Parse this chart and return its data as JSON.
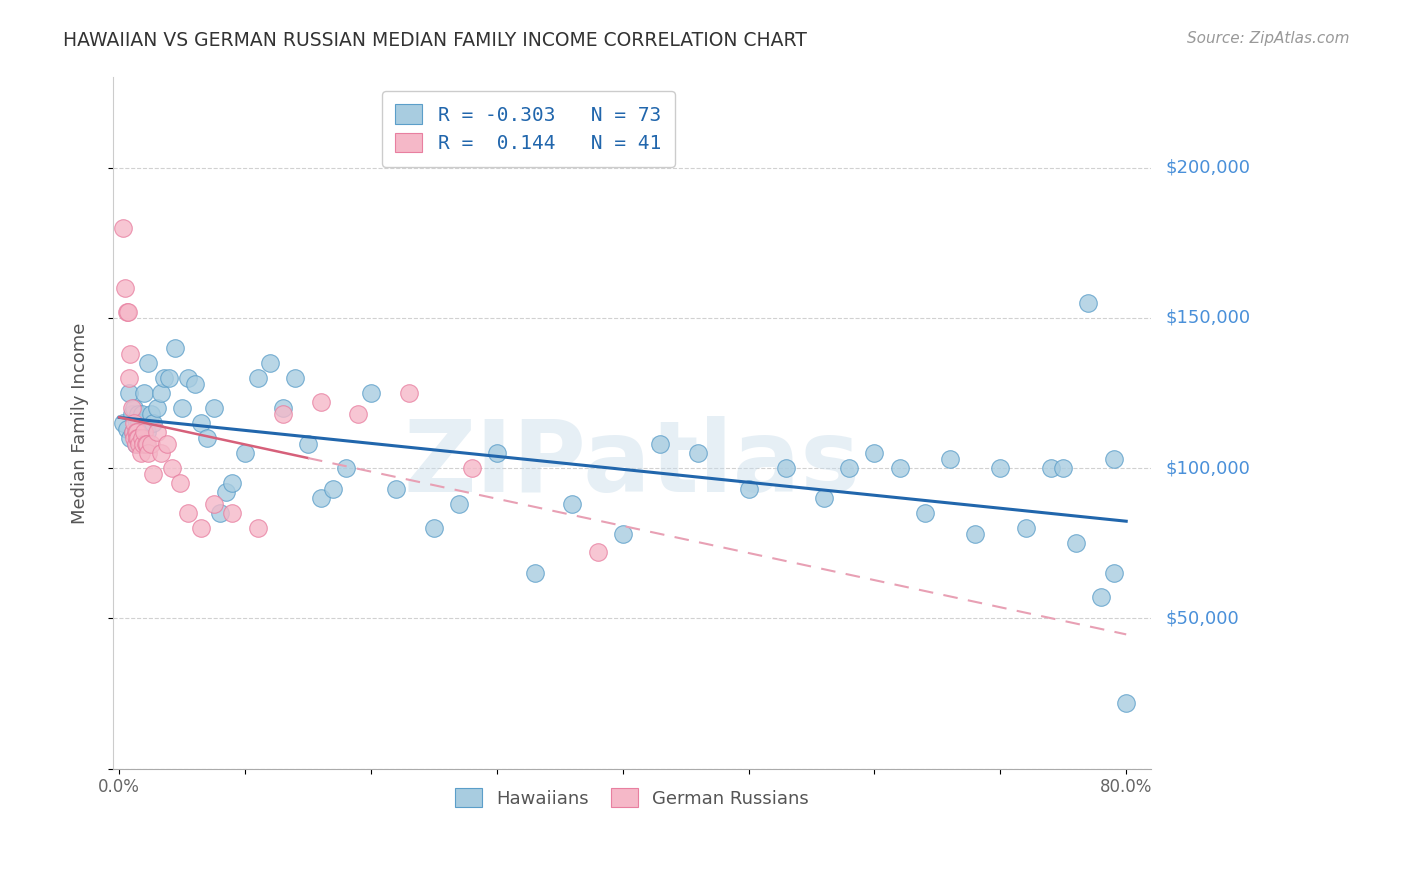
{
  "title": "HAWAIIAN VS GERMAN RUSSIAN MEDIAN FAMILY INCOME CORRELATION CHART",
  "source": "Source: ZipAtlas.com",
  "ylabel": "Median Family Income",
  "xlim": [
    -0.005,
    0.82
  ],
  "ylim": [
    0,
    230000
  ],
  "yticks": [
    0,
    50000,
    100000,
    150000,
    200000
  ],
  "xticks": [
    0.0,
    0.1,
    0.2,
    0.3,
    0.4,
    0.5,
    0.6,
    0.7,
    0.8
  ],
  "xtick_labels": [
    "0.0%",
    "",
    "",
    "",
    "",
    "",
    "",
    "",
    "80.0%"
  ],
  "hawaiians_R": -0.303,
  "hawaiians_N": 73,
  "german_russians_R": 0.144,
  "german_russians_N": 41,
  "blue_color": "#a8cce0",
  "pink_color": "#f5b8c8",
  "blue_edge_color": "#5b9ec9",
  "pink_edge_color": "#e87fa0",
  "blue_line_color": "#2166ac",
  "pink_line_color": "#d6607a",
  "pink_dash_color": "#e8a0b4",
  "right_label_color": "#4a90d9",
  "background_color": "#ffffff",
  "watermark": "ZIPatlas",
  "legend_R1": "R = -0.303",
  "legend_N1": "N = 73",
  "legend_R2": "R =  0.144",
  "legend_N2": "N = 41",
  "hawaiians_x": [
    0.003,
    0.006,
    0.008,
    0.009,
    0.01,
    0.011,
    0.012,
    0.013,
    0.014,
    0.015,
    0.015,
    0.016,
    0.017,
    0.018,
    0.019,
    0.02,
    0.021,
    0.022,
    0.023,
    0.025,
    0.027,
    0.03,
    0.033,
    0.036,
    0.04,
    0.044,
    0.05,
    0.055,
    0.06,
    0.065,
    0.07,
    0.075,
    0.08,
    0.085,
    0.09,
    0.1,
    0.11,
    0.12,
    0.13,
    0.14,
    0.15,
    0.16,
    0.17,
    0.18,
    0.2,
    0.22,
    0.25,
    0.27,
    0.3,
    0.33,
    0.36,
    0.4,
    0.43,
    0.46,
    0.5,
    0.53,
    0.56,
    0.58,
    0.6,
    0.62,
    0.64,
    0.66,
    0.68,
    0.7,
    0.72,
    0.74,
    0.75,
    0.76,
    0.77,
    0.78,
    0.79,
    0.79,
    0.8
  ],
  "hawaiians_y": [
    115000,
    113000,
    125000,
    110000,
    118000,
    112000,
    120000,
    108000,
    115000,
    110000,
    118000,
    115000,
    112000,
    118000,
    110000,
    125000,
    108000,
    112000,
    135000,
    118000,
    115000,
    120000,
    125000,
    130000,
    130000,
    140000,
    120000,
    130000,
    128000,
    115000,
    110000,
    120000,
    85000,
    92000,
    95000,
    105000,
    130000,
    135000,
    120000,
    130000,
    108000,
    90000,
    93000,
    100000,
    125000,
    93000,
    80000,
    88000,
    105000,
    65000,
    88000,
    78000,
    108000,
    105000,
    93000,
    100000,
    90000,
    100000,
    105000,
    100000,
    85000,
    103000,
    78000,
    100000,
    80000,
    100000,
    100000,
    75000,
    155000,
    57000,
    103000,
    65000,
    22000
  ],
  "german_russians_x": [
    0.003,
    0.005,
    0.006,
    0.007,
    0.008,
    0.009,
    0.01,
    0.011,
    0.012,
    0.012,
    0.013,
    0.013,
    0.014,
    0.014,
    0.015,
    0.016,
    0.017,
    0.018,
    0.019,
    0.02,
    0.021,
    0.022,
    0.023,
    0.025,
    0.027,
    0.03,
    0.033,
    0.038,
    0.042,
    0.048,
    0.055,
    0.065,
    0.075,
    0.09,
    0.11,
    0.13,
    0.16,
    0.19,
    0.23,
    0.28,
    0.38
  ],
  "german_russians_y": [
    180000,
    160000,
    152000,
    152000,
    130000,
    138000,
    120000,
    112000,
    115000,
    110000,
    112000,
    108000,
    112000,
    110000,
    110000,
    108000,
    105000,
    110000,
    108000,
    112000,
    108000,
    108000,
    105000,
    108000,
    98000,
    112000,
    105000,
    108000,
    100000,
    95000,
    85000,
    80000,
    88000,
    85000,
    80000,
    118000,
    122000,
    118000,
    125000,
    100000,
    72000
  ]
}
